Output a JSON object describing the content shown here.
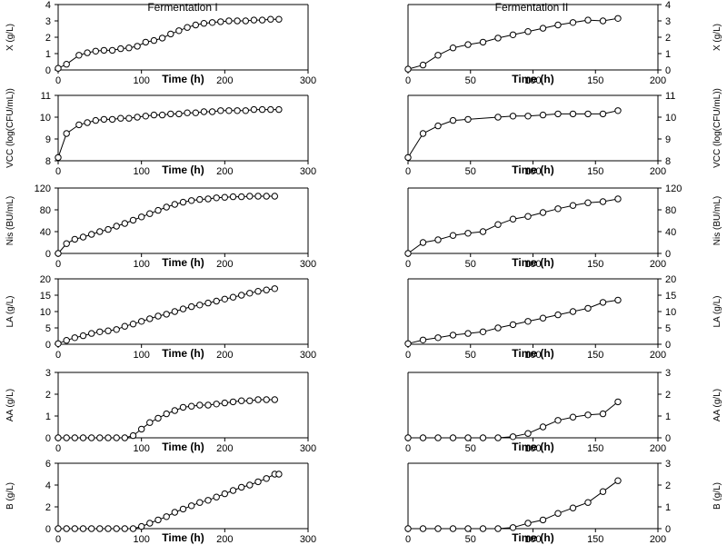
{
  "figure": {
    "column_titles": [
      "Fermentation I",
      "Fermentation II"
    ]
  },
  "chart_data": [
    {
      "type": "line",
      "panel": "X-I",
      "xlabel": "Time (h)",
      "ylabel": "X (g/L)",
      "xlim": [
        0,
        300
      ],
      "ylim": [
        0,
        4
      ],
      "xticks": [
        0,
        100,
        200,
        300
      ],
      "yticks": [
        0,
        1,
        2,
        3,
        4
      ],
      "x": [
        0,
        10,
        25,
        35,
        45,
        55,
        65,
        75,
        85,
        95,
        105,
        115,
        125,
        135,
        145,
        155,
        165,
        175,
        185,
        195,
        205,
        215,
        225,
        235,
        245,
        255,
        265
      ],
      "y": [
        0.1,
        0.35,
        0.9,
        1.05,
        1.15,
        1.2,
        1.2,
        1.3,
        1.35,
        1.45,
        1.7,
        1.8,
        1.95,
        2.2,
        2.4,
        2.6,
        2.75,
        2.85,
        2.9,
        2.95,
        3.0,
        3.0,
        3.0,
        3.05,
        3.05,
        3.1,
        3.1
      ]
    },
    {
      "type": "line",
      "panel": "X-II",
      "xlabel": "Time (h)",
      "ylabel": "X (g/L)",
      "xlim": [
        0,
        200
      ],
      "ylim": [
        0,
        4
      ],
      "xticks": [
        0,
        50,
        100,
        150,
        200
      ],
      "yticks": [
        0,
        1,
        2,
        3,
        4
      ],
      "x": [
        0,
        12,
        24,
        36,
        48,
        60,
        72,
        84,
        96,
        108,
        120,
        132,
        144,
        156,
        168
      ],
      "y": [
        0.05,
        0.3,
        0.9,
        1.35,
        1.55,
        1.7,
        1.95,
        2.15,
        2.35,
        2.55,
        2.75,
        2.9,
        3.05,
        3.0,
        3.15
      ]
    },
    {
      "type": "line",
      "panel": "VCC-I",
      "xlabel": "Time (h)",
      "ylabel": "VCC (log(CFU/mL))",
      "xlim": [
        0,
        300
      ],
      "ylim": [
        8,
        11
      ],
      "xticks": [
        0,
        100,
        200,
        300
      ],
      "yticks": [
        8,
        9,
        10,
        11
      ],
      "x": [
        0,
        10,
        25,
        35,
        45,
        55,
        65,
        75,
        85,
        95,
        105,
        115,
        125,
        135,
        145,
        155,
        165,
        175,
        185,
        195,
        205,
        215,
        225,
        235,
        245,
        255,
        265
      ],
      "y": [
        8.15,
        9.25,
        9.65,
        9.75,
        9.85,
        9.9,
        9.9,
        9.95,
        9.95,
        10.0,
        10.05,
        10.1,
        10.1,
        10.15,
        10.15,
        10.2,
        10.2,
        10.25,
        10.25,
        10.3,
        10.3,
        10.3,
        10.3,
        10.35,
        10.35,
        10.35,
        10.35
      ]
    },
    {
      "type": "line",
      "panel": "VCC-II",
      "xlabel": "Time (h)",
      "ylabel": "VCC (log(CFU/mL))",
      "xlim": [
        0,
        200
      ],
      "ylim": [
        8,
        11
      ],
      "xticks": [
        0,
        50,
        100,
        150,
        200
      ],
      "yticks": [
        8,
        9,
        10,
        11
      ],
      "x": [
        0,
        12,
        24,
        36,
        48,
        72,
        84,
        96,
        108,
        120,
        132,
        144,
        156,
        168
      ],
      "y": [
        8.15,
        9.25,
        9.6,
        9.85,
        9.9,
        10.0,
        10.05,
        10.05,
        10.1,
        10.15,
        10.15,
        10.15,
        10.15,
        10.3
      ]
    },
    {
      "type": "line",
      "panel": "Nis-I",
      "xlabel": "Time (h)",
      "ylabel": "Nis (BU/mL)",
      "xlim": [
        0,
        300
      ],
      "ylim": [
        0,
        120
      ],
      "xticks": [
        0,
        100,
        200,
        300
      ],
      "yticks": [
        0,
        40,
        80,
        120
      ],
      "x": [
        0,
        10,
        20,
        30,
        40,
        50,
        60,
        70,
        80,
        90,
        100,
        110,
        120,
        130,
        140,
        150,
        160,
        170,
        180,
        190,
        200,
        210,
        220,
        230,
        240,
        250,
        260
      ],
      "y": [
        0,
        18,
        26,
        30,
        35,
        40,
        44,
        50,
        55,
        61,
        67,
        73,
        79,
        85,
        90,
        94,
        97,
        99,
        100,
        102,
        103,
        104,
        104,
        105,
        105,
        105,
        105
      ]
    },
    {
      "type": "line",
      "panel": "Nis-II",
      "xlabel": "Time (h)",
      "ylabel": "Nis (BU/mL)",
      "xlim": [
        0,
        200
      ],
      "ylim": [
        0,
        120
      ],
      "xticks": [
        0,
        50,
        100,
        150,
        200
      ],
      "yticks": [
        0,
        40,
        80,
        120
      ],
      "x": [
        0,
        12,
        24,
        36,
        48,
        60,
        72,
        84,
        96,
        108,
        120,
        132,
        144,
        156,
        168
      ],
      "y": [
        0,
        20,
        25,
        33,
        37,
        40,
        53,
        63,
        68,
        75,
        82,
        88,
        93,
        95,
        100
      ]
    },
    {
      "type": "line",
      "panel": "LA-I",
      "xlabel": "Time (h)",
      "ylabel": "LA (g/L)",
      "xlim": [
        0,
        300
      ],
      "ylim": [
        0,
        20
      ],
      "xticks": [
        0,
        100,
        200,
        300
      ],
      "yticks": [
        0,
        5,
        10,
        15,
        20
      ],
      "x": [
        0,
        10,
        20,
        30,
        40,
        50,
        60,
        70,
        80,
        90,
        100,
        110,
        120,
        130,
        140,
        150,
        160,
        170,
        180,
        190,
        200,
        210,
        220,
        230,
        240,
        250,
        260
      ],
      "y": [
        0.2,
        1.2,
        2.0,
        2.6,
        3.3,
        3.8,
        4.1,
        4.5,
        5.5,
        6.2,
        7.0,
        7.8,
        8.6,
        9.2,
        10.0,
        10.8,
        11.5,
        12.0,
        12.6,
        13.2,
        13.8,
        14.4,
        15.0,
        15.6,
        16.2,
        16.6,
        17.0
      ]
    },
    {
      "type": "line",
      "panel": "LA-II",
      "xlabel": "Time (h)",
      "ylabel": "LA (g/L)",
      "xlim": [
        0,
        200
      ],
      "ylim": [
        0,
        20
      ],
      "xticks": [
        0,
        50,
        100,
        150,
        200
      ],
      "yticks": [
        0,
        5,
        10,
        15,
        20
      ],
      "x": [
        0,
        12,
        24,
        36,
        48,
        60,
        72,
        84,
        96,
        108,
        120,
        132,
        144,
        156,
        168
      ],
      "y": [
        0.2,
        1.3,
        2.0,
        2.8,
        3.3,
        3.8,
        5.0,
        6.0,
        7.0,
        8.0,
        9.0,
        10.0,
        11.0,
        12.8,
        13.5
      ]
    },
    {
      "type": "line",
      "panel": "AA-I",
      "xlabel": "Time (h)",
      "ylabel": "AA (g/L)",
      "xlim": [
        0,
        300
      ],
      "ylim": [
        0,
        3
      ],
      "xticks": [
        0,
        100,
        200,
        300
      ],
      "yticks": [
        0,
        1,
        2,
        3
      ],
      "x": [
        0,
        10,
        20,
        30,
        40,
        50,
        60,
        70,
        80,
        90,
        100,
        110,
        120,
        130,
        140,
        150,
        160,
        170,
        180,
        190,
        200,
        210,
        220,
        230,
        240,
        250,
        260
      ],
      "y": [
        0,
        0,
        0,
        0,
        0,
        0,
        0,
        0,
        0,
        0.1,
        0.4,
        0.7,
        0.9,
        1.1,
        1.25,
        1.4,
        1.45,
        1.5,
        1.5,
        1.55,
        1.6,
        1.65,
        1.7,
        1.7,
        1.75,
        1.75,
        1.75
      ]
    },
    {
      "type": "line",
      "panel": "AA-II",
      "xlabel": "Time (h)",
      "ylabel": "AA (g/L)",
      "xlim": [
        0,
        200
      ],
      "ylim": [
        0,
        3
      ],
      "xticks": [
        0,
        50,
        100,
        150,
        200
      ],
      "yticks": [
        0,
        1,
        2,
        3
      ],
      "x": [
        0,
        12,
        24,
        36,
        48,
        60,
        72,
        84,
        96,
        108,
        120,
        132,
        144,
        156,
        168
      ],
      "y": [
        0,
        0,
        0,
        0,
        0,
        0,
        0,
        0.05,
        0.2,
        0.5,
        0.8,
        0.95,
        1.05,
        1.1,
        1.65
      ]
    },
    {
      "type": "line",
      "panel": "B-I",
      "xlabel": "Time (h)",
      "ylabel": "B (g/L)",
      "xlim": [
        0,
        300
      ],
      "ylim": [
        0,
        6
      ],
      "xticks": [
        0,
        100,
        200,
        300
      ],
      "yticks": [
        0,
        2,
        4,
        6
      ],
      "x": [
        0,
        10,
        20,
        30,
        40,
        50,
        60,
        70,
        80,
        90,
        100,
        110,
        120,
        130,
        140,
        150,
        160,
        170,
        180,
        190,
        200,
        210,
        220,
        230,
        240,
        250,
        260,
        265
      ],
      "y": [
        0,
        0,
        0,
        0,
        0,
        0,
        0,
        0,
        0,
        0,
        0.2,
        0.5,
        0.8,
        1.1,
        1.5,
        1.8,
        2.1,
        2.4,
        2.6,
        2.9,
        3.2,
        3.5,
        3.8,
        4.0,
        4.3,
        4.6,
        5.0,
        5.0
      ]
    },
    {
      "type": "line",
      "panel": "B-II",
      "xlabel": "Time (h)",
      "ylabel": "B (g/L)",
      "xlim": [
        0,
        200
      ],
      "ylim": [
        0,
        3
      ],
      "xticks": [
        0,
        50,
        100,
        150,
        200
      ],
      "yticks": [
        0,
        1,
        2,
        3
      ],
      "x": [
        0,
        12,
        24,
        36,
        48,
        60,
        72,
        84,
        96,
        108,
        120,
        132,
        144,
        156,
        168
      ],
      "y": [
        0,
        0,
        0,
        0,
        0,
        0,
        0,
        0.05,
        0.25,
        0.4,
        0.7,
        0.95,
        1.2,
        1.7,
        2.2
      ]
    }
  ]
}
